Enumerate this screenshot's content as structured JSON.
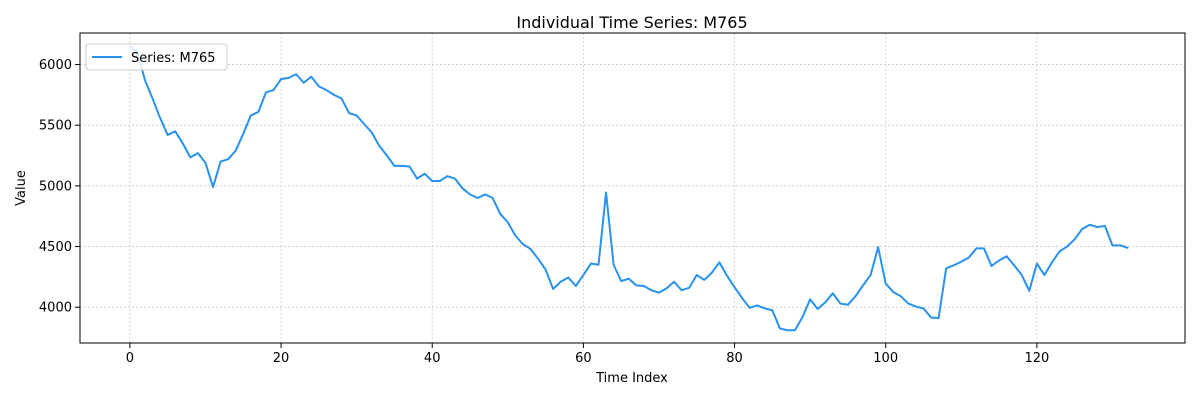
{
  "colors": {
    "line": "#2892f0",
    "grid": "#cccccc",
    "axis": "#000000",
    "background": "#ffffff"
  },
  "chart_data": {
    "type": "line",
    "title": "Individual Time Series: M765",
    "xlabel": "Time Index",
    "ylabel": "Value",
    "xlim": [
      -6.6,
      139.6
    ],
    "ylim": [
      3705,
      6260
    ],
    "xticks": [
      0,
      20,
      40,
      60,
      80,
      100,
      120
    ],
    "yticks": [
      4000,
      4500,
      5000,
      5500,
      6000
    ],
    "grid": true,
    "legend_position": "top-left",
    "series": [
      {
        "name": "Series: M765",
        "x": [
          0,
          1,
          2,
          3,
          4,
          5,
          6,
          7,
          8,
          9,
          10,
          11,
          12,
          13,
          14,
          15,
          16,
          17,
          18,
          19,
          20,
          21,
          22,
          23,
          24,
          25,
          26,
          27,
          28,
          29,
          30,
          31,
          32,
          33,
          34,
          35,
          36,
          37,
          38,
          39,
          40,
          41,
          42,
          43,
          44,
          45,
          46,
          47,
          48,
          49,
          50,
          51,
          52,
          53,
          54,
          55,
          56,
          57,
          58,
          59,
          60,
          61,
          62,
          63,
          64,
          65,
          66,
          67,
          68,
          69,
          70,
          71,
          72,
          73,
          74,
          75,
          76,
          77,
          78,
          79,
          80,
          81,
          82,
          83,
          84,
          85,
          86,
          87,
          88,
          89,
          90,
          91,
          92,
          93,
          94,
          95,
          96,
          97,
          98,
          99,
          100,
          101,
          102,
          103,
          104,
          105,
          106,
          107,
          108,
          109,
          110,
          111,
          112,
          113,
          114,
          115,
          116,
          117,
          118,
          119,
          120,
          121,
          122,
          123,
          124,
          125,
          126,
          127,
          128,
          129,
          130,
          131,
          132
        ],
        "values": [
          6150,
          6100,
          5870,
          5720,
          5560,
          5420,
          5450,
          5350,
          5235,
          5270,
          5190,
          4990,
          5200,
          5220,
          5290,
          5430,
          5580,
          5610,
          5770,
          5790,
          5880,
          5890,
          5920,
          5850,
          5900,
          5820,
          5790,
          5750,
          5720,
          5600,
          5580,
          5510,
          5440,
          5330,
          5250,
          5165,
          5165,
          5160,
          5060,
          5100,
          5040,
          5040,
          5080,
          5060,
          4980,
          4930,
          4900,
          4930,
          4900,
          4770,
          4700,
          4590,
          4520,
          4480,
          4400,
          4310,
          4150,
          4210,
          4245,
          4175,
          4265,
          4360,
          4350,
          4945,
          4350,
          4215,
          4235,
          4180,
          4175,
          4140,
          4120,
          4155,
          4210,
          4140,
          4160,
          4265,
          4225,
          4285,
          4370,
          4260,
          4165,
          4075,
          3995,
          4015,
          3990,
          3975,
          3825,
          3810,
          3810,
          3920,
          4065,
          3985,
          4040,
          4115,
          4030,
          4020,
          4090,
          4180,
          4265,
          4495,
          4195,
          4125,
          4090,
          4030,
          4005,
          3990,
          3915,
          3910,
          4320,
          4345,
          4375,
          4410,
          4485,
          4485,
          4340,
          4385,
          4420,
          4345,
          4265,
          4135,
          4360,
          4265,
          4370,
          4460,
          4500,
          4560,
          4645,
          4680,
          4660,
          4670,
          4510,
          4510,
          4490
        ]
      }
    ]
  }
}
